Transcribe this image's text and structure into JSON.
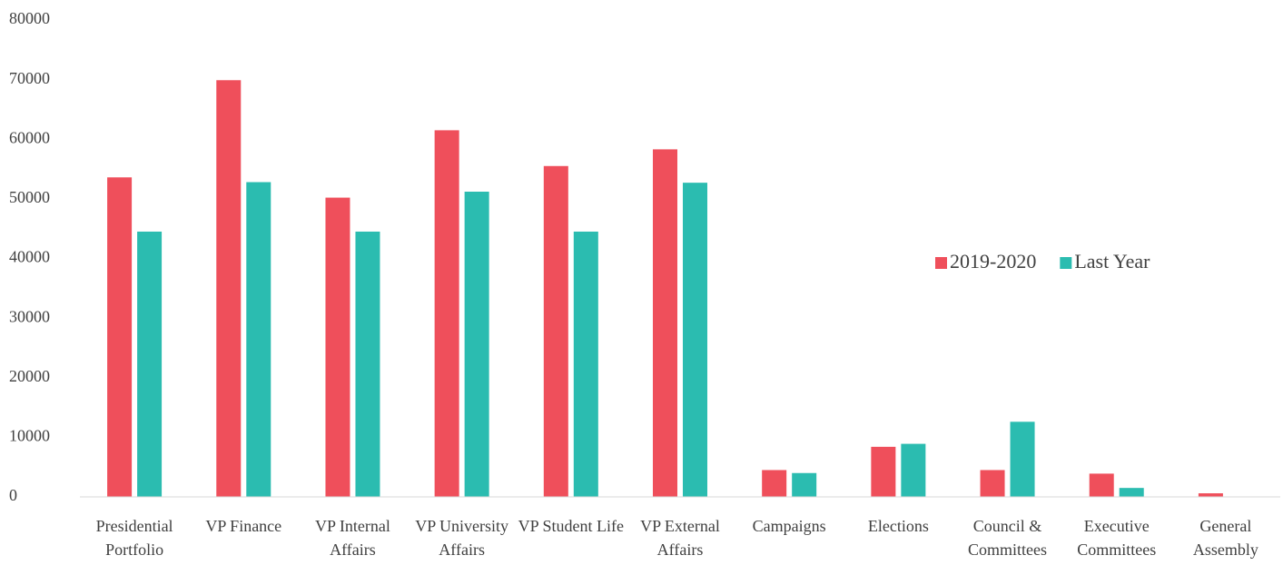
{
  "chart_data": {
    "type": "bar",
    "categories": [
      "Presidential Portfolio",
      "VP Finance",
      "VP Internal Affairs",
      "VP University Affairs",
      "VP Student Life",
      "VP External Affairs",
      "Campaigns",
      "Elections",
      "Council & Committees",
      "Executive Committees",
      "General Assembly"
    ],
    "series": [
      {
        "name": "2019-2020",
        "color": "#ef4f5b",
        "values": [
          53600,
          69900,
          50200,
          61500,
          55500,
          58300,
          4500,
          8400,
          4500,
          3900,
          600
        ]
      },
      {
        "name": "Last Year",
        "color": "#2bbcb0",
        "values": [
          44500,
          52800,
          44500,
          51200,
          44500,
          52700,
          4000,
          8900,
          12600,
          1500,
          0
        ]
      }
    ],
    "ylim": [
      0,
      80000
    ],
    "yticks": [
      0,
      10000,
      20000,
      30000,
      40000,
      50000,
      60000,
      70000,
      80000
    ],
    "grid": false,
    "legend": "right"
  }
}
